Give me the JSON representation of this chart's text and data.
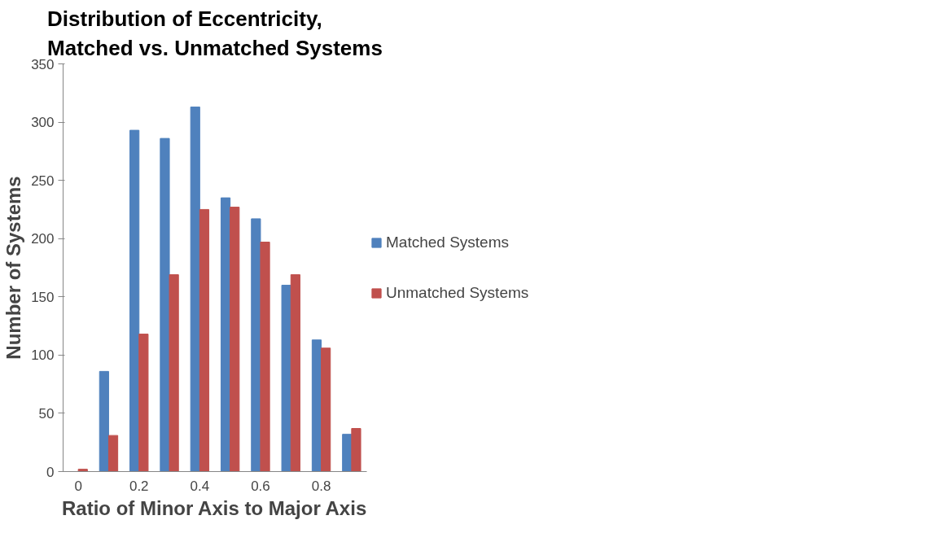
{
  "chart_data": {
    "type": "bar",
    "title": "Distribution of Eccentricity,\nMatched vs. Unmatched Systems",
    "xlabel": "Ratio of Minor Axis to Major Axis",
    "ylabel": "Number of Systems",
    "categories": [
      "0",
      null,
      "0.2",
      null,
      "0.4",
      null,
      "0.6",
      null,
      "0.8",
      null
    ],
    "series": [
      {
        "name": "Matched Systems",
        "color": "#4f81bd",
        "values": [
          0,
          86,
          293,
          286,
          313,
          235,
          217,
          160,
          113,
          32
        ]
      },
      {
        "name": "Unmatched Systems",
        "color": "#c0504d",
        "values": [
          2,
          31,
          118,
          169,
          225,
          227,
          197,
          169,
          106,
          37
        ]
      }
    ],
    "ylim": [
      0,
      350
    ],
    "yticks": [
      0,
      50,
      100,
      150,
      200,
      250,
      300,
      350
    ],
    "grid": false,
    "legend": "right"
  }
}
